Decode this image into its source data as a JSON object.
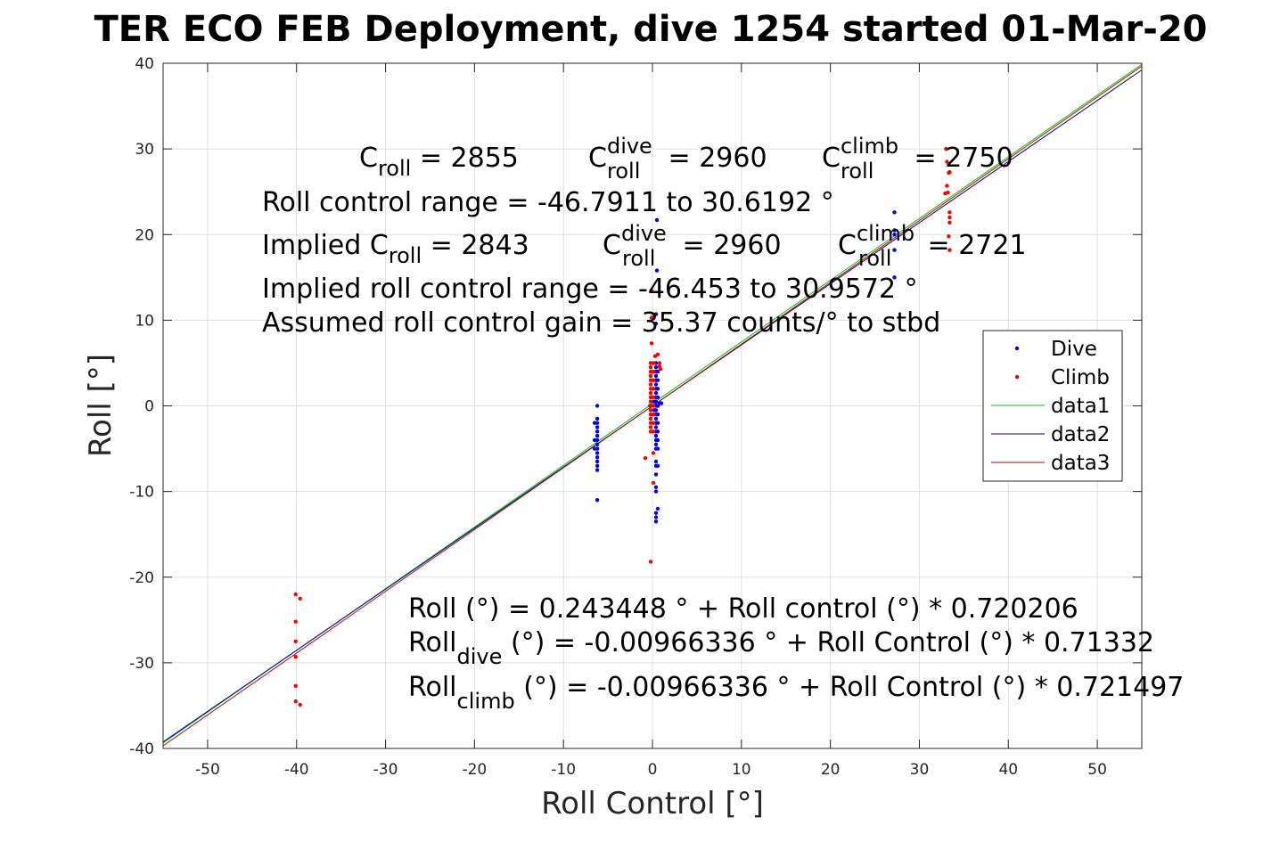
{
  "chart_data": {
    "type": "scatter",
    "title": "TER ECO FEB Deployment, dive 1254 started 01-Mar-20",
    "xlabel": "Roll Control [°]",
    "ylabel": "Roll [°]",
    "xlim": [
      -55,
      55
    ],
    "ylim": [
      -40,
      40
    ],
    "xticks": [
      -50,
      -40,
      -30,
      -20,
      -10,
      0,
      10,
      20,
      30,
      40,
      50
    ],
    "yticks": [
      -40,
      -30,
      -20,
      -10,
      0,
      10,
      20,
      30,
      40
    ],
    "grid": true,
    "legend_position": "right-middle",
    "series": [
      {
        "name": "Dive",
        "kind": "points",
        "color": "#0000ff",
        "points": [
          [
            -6.2,
            0
          ],
          [
            -6.2,
            -1.5
          ],
          [
            -6.2,
            -2
          ],
          [
            -6.2,
            -2.5
          ],
          [
            -6.2,
            -3
          ],
          [
            -6.2,
            -3.5
          ],
          [
            -6.2,
            -4
          ],
          [
            -6.2,
            -4.5
          ],
          [
            -6.2,
            -5
          ],
          [
            -6.2,
            -5.5
          ],
          [
            -6.2,
            -6
          ],
          [
            -6.2,
            -6.5
          ],
          [
            -6.2,
            -7
          ],
          [
            -6.2,
            -7.5
          ],
          [
            -6.2,
            -11
          ],
          [
            -6.5,
            -2
          ],
          [
            -6.5,
            -4
          ],
          [
            -6.5,
            -5
          ],
          [
            0.5,
            21.7
          ],
          [
            0.5,
            15.8
          ],
          [
            0.4,
            10.7
          ],
          [
            0.4,
            9.6
          ],
          [
            0.4,
            5
          ],
          [
            0.4,
            4.5
          ],
          [
            0.4,
            4
          ],
          [
            0.4,
            3.5
          ],
          [
            0.4,
            3
          ],
          [
            0.4,
            2.5
          ],
          [
            0.4,
            2
          ],
          [
            0.4,
            1.5
          ],
          [
            0.4,
            1
          ],
          [
            0.4,
            0.5
          ],
          [
            0.4,
            0
          ],
          [
            0.4,
            -0.5
          ],
          [
            0.4,
            -1
          ],
          [
            0.4,
            -1.5
          ],
          [
            0.4,
            -2
          ],
          [
            0.4,
            -2.5
          ],
          [
            0.4,
            -3
          ],
          [
            0.4,
            -3.5
          ],
          [
            0.4,
            -4
          ],
          [
            0.4,
            -4.5
          ],
          [
            0.4,
            -5
          ],
          [
            0.4,
            -6.5
          ],
          [
            0.4,
            -7
          ],
          [
            0.4,
            -8
          ],
          [
            0.4,
            -9.5
          ],
          [
            0.4,
            -10
          ],
          [
            0.4,
            -12.5
          ],
          [
            0.4,
            -13
          ],
          [
            0.4,
            -13.5
          ],
          [
            0.6,
            4
          ],
          [
            0.6,
            3
          ],
          [
            0.6,
            2
          ],
          [
            0.6,
            1
          ],
          [
            0.6,
            0
          ],
          [
            0.6,
            -1
          ],
          [
            0.6,
            -2
          ],
          [
            0.6,
            -3
          ],
          [
            0.6,
            -4
          ],
          [
            0.6,
            -5
          ],
          [
            0.6,
            -7
          ],
          [
            0.6,
            -12
          ],
          [
            0.2,
            0.5
          ],
          [
            0.2,
            -0.5
          ],
          [
            0.8,
            0.3
          ],
          [
            1,
            0.3
          ],
          [
            -0.2,
            0
          ],
          [
            27.2,
            22.6
          ],
          [
            27.2,
            20.5
          ],
          [
            27.2,
            18.2
          ],
          [
            27.2,
            15
          ],
          [
            27.2,
            20
          ]
        ]
      },
      {
        "name": "Climb",
        "kind": "points",
        "color": "#ff0000",
        "points": [
          [
            -40.1,
            -22
          ],
          [
            -40.1,
            -25.2
          ],
          [
            -40.1,
            -27.5
          ],
          [
            -40.1,
            -29.3
          ],
          [
            -40.1,
            -32.7
          ],
          [
            -40.1,
            -34.5
          ],
          [
            -39.6,
            -22.5
          ],
          [
            -39.6,
            -34.9
          ],
          [
            -0.8,
            -6.1
          ],
          [
            -0.3,
            0
          ],
          [
            -0.1,
            13.5
          ],
          [
            -0.1,
            10.3
          ],
          [
            -0.1,
            7.3
          ],
          [
            -0.2,
            5
          ],
          [
            -0.2,
            4.5
          ],
          [
            -0.2,
            4
          ],
          [
            -0.2,
            3.5
          ],
          [
            -0.2,
            3
          ],
          [
            -0.2,
            2.5
          ],
          [
            -0.2,
            2
          ],
          [
            -0.2,
            1.5
          ],
          [
            -0.2,
            1
          ],
          [
            -0.2,
            0.5
          ],
          [
            -0.2,
            -0.5
          ],
          [
            -0.2,
            -1
          ],
          [
            -0.2,
            -1.5
          ],
          [
            -0.2,
            -2
          ],
          [
            -0.2,
            -2.5
          ],
          [
            -0.2,
            -3
          ],
          [
            0.1,
            5
          ],
          [
            0.1,
            4
          ],
          [
            0.1,
            3
          ],
          [
            0.1,
            2
          ],
          [
            0.1,
            1
          ],
          [
            0.1,
            0
          ],
          [
            0.1,
            -1
          ],
          [
            0.1,
            -2
          ],
          [
            0.1,
            -3
          ],
          [
            0.1,
            -5.5
          ],
          [
            0.1,
            -9
          ],
          [
            -0.2,
            -18.2
          ],
          [
            0.3,
            5.8
          ],
          [
            0.6,
            6
          ],
          [
            0.8,
            4.6
          ],
          [
            0.8,
            5
          ],
          [
            0.9,
            4.3
          ],
          [
            33,
            30
          ],
          [
            33.1,
            28.5
          ],
          [
            33.3,
            27.2
          ],
          [
            33.1,
            25.7
          ],
          [
            32.9,
            24.8
          ],
          [
            33.2,
            24.9
          ],
          [
            33.4,
            22.6
          ],
          [
            33.4,
            22
          ],
          [
            33.4,
            21.4
          ],
          [
            33.3,
            19.8
          ],
          [
            33.4,
            18.2
          ],
          [
            33.4,
            27.3
          ]
        ]
      },
      {
        "name": "data1",
        "kind": "line",
        "color": "#00c800",
        "x": [
          -55,
          55
        ],
        "y": [
          -39.35,
          39.87
        ]
      },
      {
        "name": "data2",
        "kind": "line",
        "color": "#0000aa",
        "x": [
          -55,
          55
        ],
        "y": [
          -39.24,
          39.22
        ]
      },
      {
        "name": "data3",
        "kind": "line",
        "color": "#cc0000",
        "x": [
          -55,
          55
        ],
        "y": [
          -39.69,
          39.67
        ]
      }
    ],
    "annotations": {
      "c_roll": {
        "base": "C",
        "sub": "roll",
        "rest": " = 2855"
      },
      "c_roll_dive": {
        "base": "C",
        "sup": "dive",
        "sub": "roll",
        "rest": " = 2960"
      },
      "c_roll_climb": {
        "base": "C",
        "sup": "climb",
        "sub": "roll",
        "rest": " = 2750"
      },
      "range": "Roll control range = -46.7911 to 30.6192 °",
      "implied_c_roll": {
        "base": "Implied C",
        "sub": "roll",
        "rest": " = 2843"
      },
      "implied_c_roll_dive": {
        "base": "C",
        "sup": "dive",
        "sub": "roll",
        "rest": " = 2960"
      },
      "implied_c_roll_climb": {
        "base": "C",
        "sup": "climb",
        "sub": "roll",
        "rest": " = 2721"
      },
      "implied_range": "Implied roll control range = -46.453 to 30.9572 °",
      "gain": "Assumed roll control gain = 35.37 counts/° to stbd",
      "fit": "Roll (°) = 0.243448 ° + Roll control (°) * 0.720206",
      "fit_dive": {
        "base": "Roll",
        "sub": "dive",
        "rest": " (°) = -0.00966336 ° + Roll Control (°) * 0.71332"
      },
      "fit_climb": {
        "base": "Roll",
        "sub": "climb",
        "rest": " (°) = -0.00966336 ° + Roll Control (°) * 0.721497"
      }
    }
  }
}
